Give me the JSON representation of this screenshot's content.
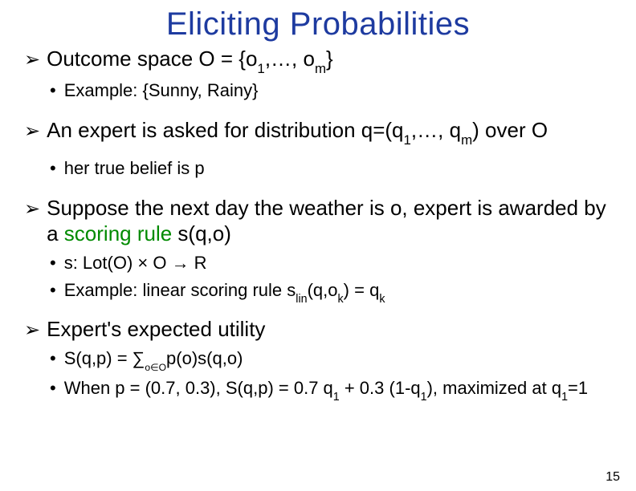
{
  "colors": {
    "title": "#1e3ba0",
    "accent": "#008a00",
    "text": "#000000",
    "background": "#ffffff"
  },
  "title": "Eliciting Probabilities",
  "page_number": "15",
  "bullets": [
    {
      "level": 1,
      "parts": [
        {
          "t": "Outcome space O = {o"
        },
        {
          "t": "1",
          "sub": true
        },
        {
          "t": ",…, o"
        },
        {
          "t": "m",
          "sub": true
        },
        {
          "t": "}"
        }
      ]
    },
    {
      "level": 2,
      "parts": [
        {
          "t": "Example: {Sunny, Rainy}"
        }
      ]
    },
    {
      "gap": "md"
    },
    {
      "level": 1,
      "parts": [
        {
          "t": "An expert is asked for distribution q=(q"
        },
        {
          "t": "1",
          "sub": true
        },
        {
          "t": ",…, q"
        },
        {
          "t": "m",
          "sub": true
        },
        {
          "t": ") over O"
        }
      ]
    },
    {
      "gap": "sm"
    },
    {
      "level": 2,
      "parts": [
        {
          "t": "her true belief is p"
        }
      ]
    },
    {
      "gap": "md"
    },
    {
      "level": 1,
      "parts": [
        {
          "t": "Suppose the next day the weather is o, expert is awarded by a "
        },
        {
          "t": "scoring rule",
          "accent": true
        },
        {
          "t": " s(q,o)"
        }
      ]
    },
    {
      "level": 2,
      "parts": [
        {
          "t": "s: Lot(O) × O → R"
        }
      ]
    },
    {
      "level": 2,
      "parts": [
        {
          "t": "Example: linear scoring rule s"
        },
        {
          "t": "lin",
          "sub": true
        },
        {
          "t": "(q,o"
        },
        {
          "t": "k",
          "sub": true
        },
        {
          "t": ") = q"
        },
        {
          "t": "k",
          "sub": true
        }
      ]
    },
    {
      "gap": "sm"
    },
    {
      "level": 1,
      "parts": [
        {
          "t": "Expert's expected utility"
        }
      ]
    },
    {
      "level": 2,
      "parts": [
        {
          "t": "S(q,p) = ∑"
        },
        {
          "t": "o∈O",
          "subsm": true
        },
        {
          "t": "p(o)s(q,o)"
        }
      ]
    },
    {
      "level": 2,
      "parts": [
        {
          "t": "When p = (0.7, 0.3), S(q,p) = 0.7 q"
        },
        {
          "t": "1",
          "sub": true
        },
        {
          "t": " + 0.3 (1-q"
        },
        {
          "t": "1",
          "sub": true
        },
        {
          "t": "), maximized at q"
        },
        {
          "t": "1",
          "sub": true
        },
        {
          "t": "=1"
        }
      ]
    }
  ]
}
